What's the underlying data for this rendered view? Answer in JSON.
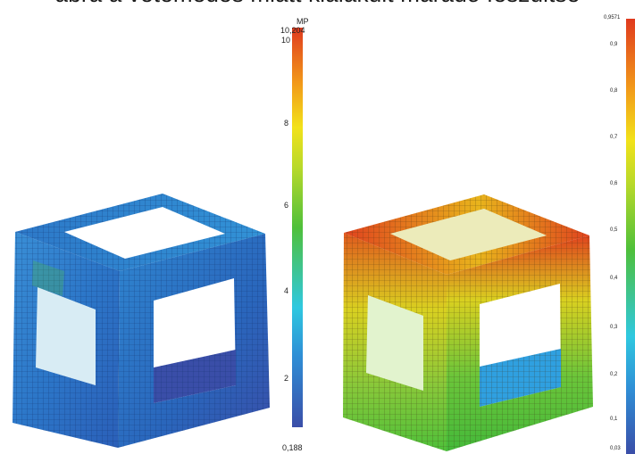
{
  "caption": "ábra a vetemedés miatt kialakult maradó feszültsé",
  "left_scale": {
    "unit": "MP",
    "max_label": "10,204",
    "min_label": "0,188",
    "ticks": [
      "10",
      "8",
      "6",
      "4",
      "2"
    ]
  },
  "right_scale": {
    "max_label": "0,9571",
    "min_label": "0,03",
    "ticks": [
      "0,9",
      "0,8",
      "0,7",
      "0,6",
      "0,5",
      "0,4",
      "0,3",
      "0,2",
      "0,1"
    ]
  },
  "colors": {
    "scale": [
      "#3a4ea8",
      "#2f8fd6",
      "#2fc8e0",
      "#4fc03a",
      "#b8d92a",
      "#f2e21a",
      "#f29a1a",
      "#e03a1e"
    ],
    "stress_model_base": "#2e6fc0",
    "displacement_model_top": "#e0431e"
  }
}
